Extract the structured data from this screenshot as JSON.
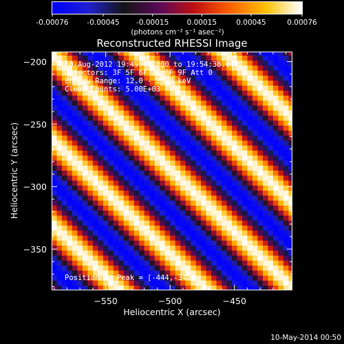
{
  "colorbar": {
    "ticks": [
      {
        "value": -0.00076,
        "label": "-0.00076"
      },
      {
        "value": -0.00045,
        "label": "-0.00045"
      },
      {
        "value": -0.00015,
        "label": "-0.00015"
      },
      {
        "value": 0.00015,
        "label": "0.00015"
      },
      {
        "value": 0.00045,
        "label": "0.00045"
      },
      {
        "value": 0.00076,
        "label": "0.00076"
      }
    ],
    "range": [
      -0.00076,
      0.00076
    ],
    "units_label": "(photons cm⁻² s⁻¹ asec⁻²)",
    "colormap": [
      "#0000ff",
      "#2020d0",
      "#141414",
      "#5a0a5a",
      "#c01010",
      "#ff6000",
      "#ffc000",
      "#ffffff"
    ]
  },
  "overlay": {
    "line1": "10-Aug-2012 19:49:00.000 to 19:54:38.000",
    "line2": "Detectors: 3F 5F 6F 7F 8F 9F  Att 0",
    "line3": "Energy Range: 12.0 - 25.0 keV",
    "line4": "Clean         Counts: 5.00E+03",
    "position": "Position at Peak = [-444,-342]"
  },
  "footer": {
    "date": "10-May-2014 00:50"
  },
  "chart_data": {
    "type": "heatmap",
    "title": "Reconstructed RHESSI Image",
    "xlabel": "Heliocentric X (arcsec)",
    "ylabel": "Heliocentric Y (arcsec)",
    "xlim": [
      -592,
      -405
    ],
    "ylim": [
      -383,
      -192
    ],
    "x_ticks": [
      {
        "value": -550,
        "label": "−550"
      },
      {
        "value": -500,
        "label": "−500"
      },
      {
        "value": -450,
        "label": "−450"
      }
    ],
    "y_ticks": [
      {
        "value": -200,
        "label": "−200"
      },
      {
        "value": -250,
        "label": "−250"
      },
      {
        "value": -300,
        "label": "−300"
      },
      {
        "value": -350,
        "label": "−350"
      }
    ],
    "pattern": {
      "description_free": true,
      "fringe_direction_deg": 45,
      "fringe_period_arcsec": 48,
      "peak": [
        -444,
        -342
      ],
      "amplitude": 0.00076
    }
  }
}
